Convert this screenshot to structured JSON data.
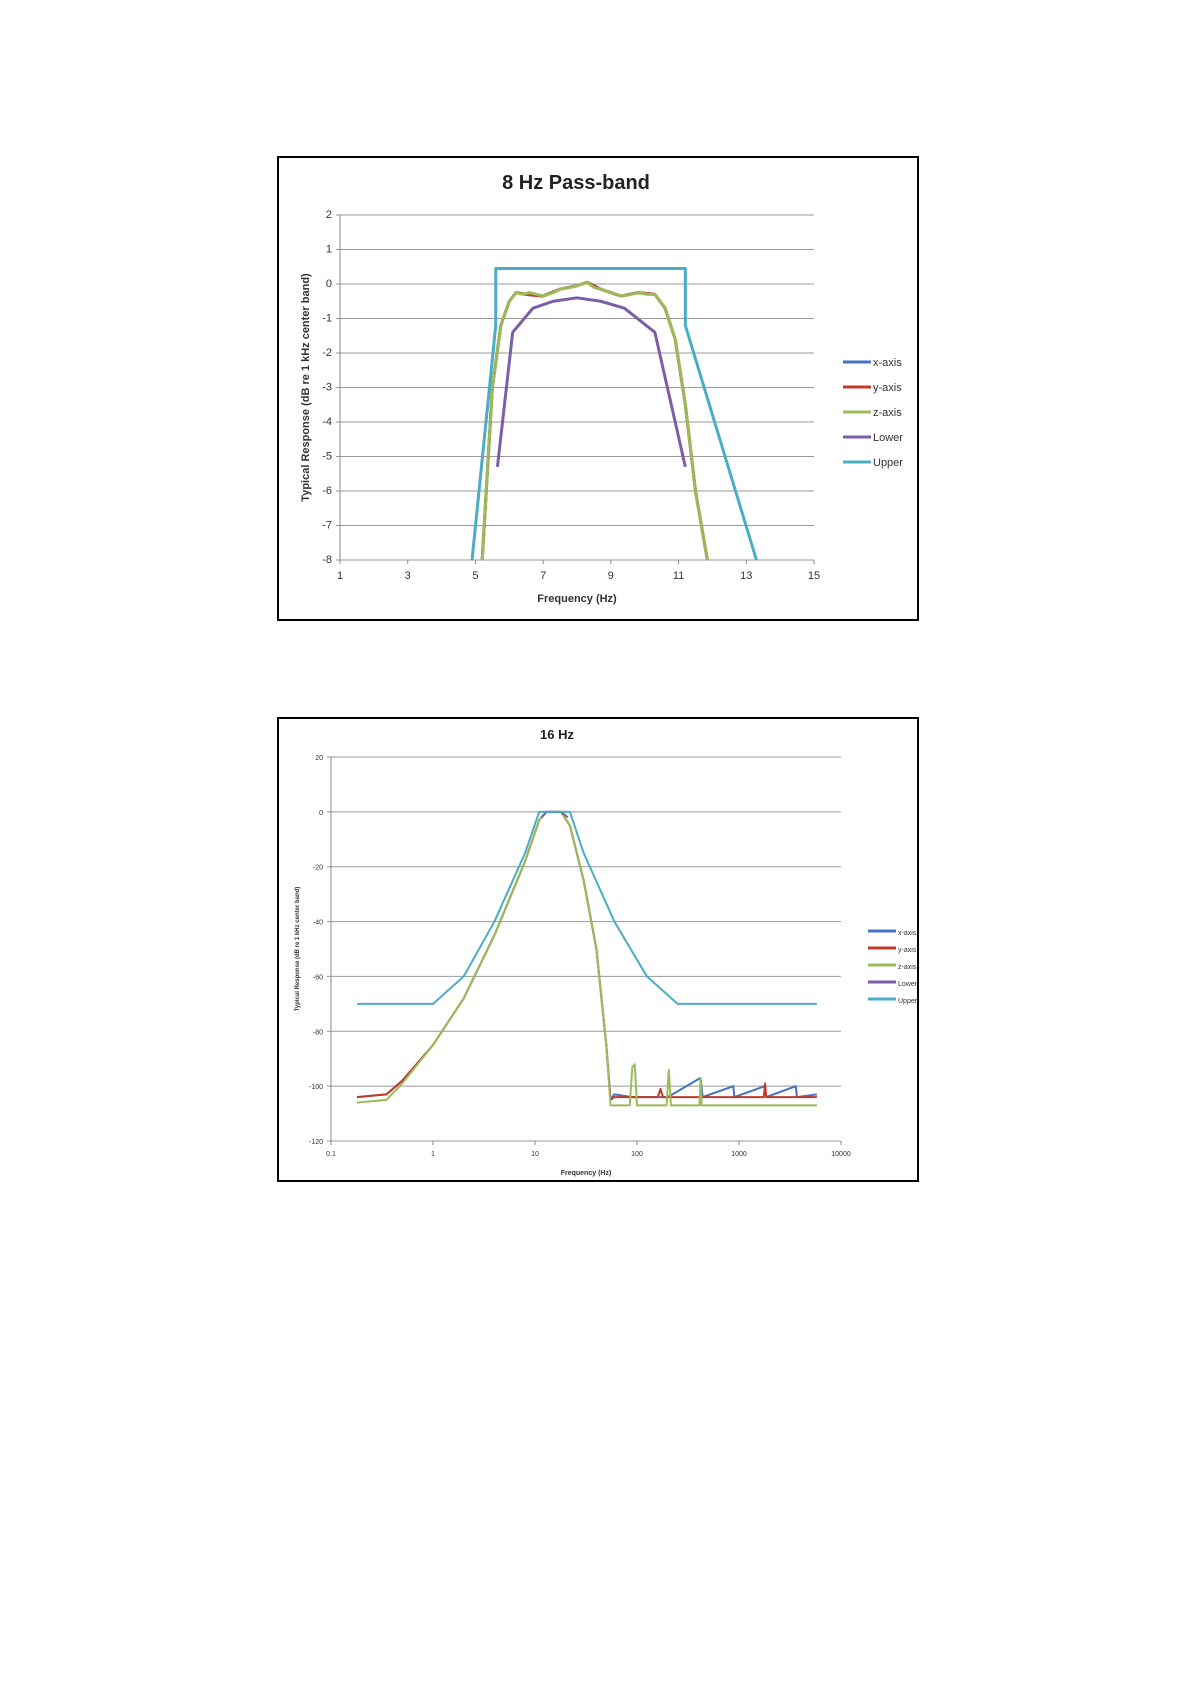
{
  "chart_data": [
    {
      "type": "line",
      "title": "8 Hz Pass-band",
      "xlabel": "Frequency (Hz)",
      "ylabel": "Typical  Response  (dB re 1 kHz center band)",
      "xscale": "linear",
      "xlim": [
        1,
        15
      ],
      "ylim": [
        -8,
        2
      ],
      "xticks": [
        1,
        3,
        5,
        7,
        9,
        11,
        13,
        15
      ],
      "yticks": [
        2,
        1,
        0,
        -1,
        -2,
        -3,
        -4,
        -5,
        -6,
        -7,
        -8
      ],
      "grid": true,
      "legend": "right",
      "series": [
        {
          "name": "x-axis",
          "color": "#4472c4",
          "points": [
            [
              5.2,
              -8
            ],
            [
              5.5,
              -3
            ],
            [
              5.75,
              -1.2
            ],
            [
              6.0,
              -0.5
            ],
            [
              6.2,
              -0.25
            ],
            [
              6.5,
              -0.3
            ],
            [
              7,
              -0.35
            ],
            [
              7.5,
              -0.15
            ],
            [
              8,
              -0.05
            ],
            [
              8.3,
              0.05
            ],
            [
              8.7,
              -0.15
            ],
            [
              9.3,
              -0.35
            ],
            [
              9.8,
              -0.25
            ],
            [
              10.3,
              -0.3
            ],
            [
              10.6,
              -0.7
            ],
            [
              10.9,
              -1.6
            ],
            [
              11.2,
              -3.5
            ],
            [
              11.5,
              -6
            ],
            [
              11.85,
              -8
            ]
          ]
        },
        {
          "name": "y-axis",
          "color": "#c0392b",
          "points": [
            [
              5.2,
              -8
            ],
            [
              5.5,
              -3
            ],
            [
              5.75,
              -1.2
            ],
            [
              6.0,
              -0.5
            ],
            [
              6.2,
              -0.25
            ],
            [
              6.5,
              -0.3
            ],
            [
              7,
              -0.35
            ],
            [
              7.5,
              -0.15
            ],
            [
              8,
              -0.05
            ],
            [
              8.3,
              0.05
            ],
            [
              8.7,
              -0.15
            ],
            [
              9.3,
              -0.35
            ],
            [
              9.8,
              -0.25
            ],
            [
              10.3,
              -0.3
            ],
            [
              10.6,
              -0.7
            ],
            [
              10.9,
              -1.6
            ],
            [
              11.2,
              -3.5
            ],
            [
              11.5,
              -6
            ],
            [
              11.85,
              -8
            ]
          ]
        },
        {
          "name": "z-axis",
          "color": "#9bbb59",
          "points": [
            [
              5.2,
              -8
            ],
            [
              5.5,
              -3
            ],
            [
              5.75,
              -1.2
            ],
            [
              6.0,
              -0.5
            ],
            [
              6.2,
              -0.25
            ],
            [
              6.4,
              -0.3
            ],
            [
              6.6,
              -0.25
            ],
            [
              7,
              -0.35
            ],
            [
              7.3,
              -0.25
            ],
            [
              7.5,
              -0.15
            ],
            [
              7.8,
              -0.1
            ],
            [
              8,
              -0.05
            ],
            [
              8.3,
              0.05
            ],
            [
              8.5,
              -0.1
            ],
            [
              8.7,
              -0.15
            ],
            [
              9,
              -0.25
            ],
            [
              9.3,
              -0.35
            ],
            [
              9.6,
              -0.3
            ],
            [
              9.8,
              -0.25
            ],
            [
              10.1,
              -0.3
            ],
            [
              10.3,
              -0.3
            ],
            [
              10.6,
              -0.7
            ],
            [
              10.9,
              -1.6
            ],
            [
              11.2,
              -3.5
            ],
            [
              11.5,
              -6
            ],
            [
              11.85,
              -8
            ]
          ]
        },
        {
          "name": "Lower",
          "color": "#7b5ea7",
          "points": [
            [
              5.65,
              -5.3
            ],
            [
              6.1,
              -1.4
            ],
            [
              6.7,
              -0.7
            ],
            [
              7.3,
              -0.5
            ],
            [
              8,
              -0.4
            ],
            [
              8.7,
              -0.5
            ],
            [
              9.4,
              -0.7
            ],
            [
              10.3,
              -1.4
            ],
            [
              11.2,
              -5.3
            ]
          ]
        },
        {
          "name": "Upper",
          "color": "#4bacc6",
          "points": [
            [
              4.9,
              -8
            ],
            [
              5.6,
              -1.2
            ],
            [
              5.6,
              0.45
            ],
            [
              11.2,
              0.45
            ],
            [
              11.2,
              -1.2
            ],
            [
              13.3,
              -8
            ]
          ]
        }
      ]
    },
    {
      "type": "line",
      "title": "16 Hz",
      "xlabel": "Frequency (Hz)",
      "ylabel": "Typical Response (dB re 1 kHz center band)",
      "xscale": "log",
      "xlim": [
        0.1,
        10000
      ],
      "ylim": [
        -120,
        20
      ],
      "xticks": [
        0.1,
        1,
        10,
        100,
        1000,
        10000
      ],
      "xtick_labels": [
        "0.1",
        "1",
        "10",
        "100",
        "1000",
        "10000"
      ],
      "yticks": [
        20,
        0,
        -20,
        -40,
        -60,
        -80,
        -100,
        -120
      ],
      "grid": true,
      "legend": "right",
      "series": [
        {
          "name": "x-axis",
          "color": "#4472c4",
          "points": [
            [
              0.18,
              -104
            ],
            [
              0.35,
              -103
            ],
            [
              0.5,
              -98
            ],
            [
              1,
              -85
            ],
            [
              2,
              -68
            ],
            [
              4,
              -45
            ],
            [
              8,
              -18
            ],
            [
              11,
              -3
            ],
            [
              13,
              0
            ],
            [
              18,
              0
            ],
            [
              22,
              -5
            ],
            [
              30,
              -25
            ],
            [
              40,
              -50
            ],
            [
              50,
              -85
            ],
            [
              55,
              -105
            ],
            [
              60,
              -103
            ],
            [
              90,
              -104
            ],
            [
              200,
              -104
            ],
            [
              420,
              -97
            ],
            [
              440,
              -104
            ],
            [
              880,
              -100
            ],
            [
              900,
              -104
            ],
            [
              1800,
              -100
            ],
            [
              1850,
              -104
            ],
            [
              3600,
              -100
            ],
            [
              3700,
              -104
            ],
            [
              5800,
              -103
            ]
          ]
        },
        {
          "name": "y-axis",
          "color": "#c0392b",
          "points": [
            [
              0.18,
              -104
            ],
            [
              0.35,
              -103
            ],
            [
              0.5,
              -98
            ],
            [
              1,
              -85
            ],
            [
              2,
              -68
            ],
            [
              4,
              -45
            ],
            [
              8,
              -18
            ],
            [
              11,
              -3
            ],
            [
              13,
              0
            ],
            [
              18,
              0
            ],
            [
              22,
              -5
            ],
            [
              30,
              -25
            ],
            [
              40,
              -50
            ],
            [
              50,
              -85
            ],
            [
              55,
              -105
            ],
            [
              60,
              -104
            ],
            [
              160,
              -104
            ],
            [
              170,
              -101
            ],
            [
              180,
              -104
            ],
            [
              1750,
              -104
            ],
            [
              1800,
              -99
            ],
            [
              1850,
              -104
            ],
            [
              5800,
              -104
            ]
          ]
        },
        {
          "name": "z-axis",
          "color": "#9bbb59",
          "points": [
            [
              0.18,
              -106
            ],
            [
              0.35,
              -105
            ],
            [
              0.5,
              -99
            ],
            [
              1,
              -85
            ],
            [
              2,
              -68
            ],
            [
              4,
              -45
            ],
            [
              8,
              -18
            ],
            [
              11,
              -3
            ],
            [
              13,
              0
            ],
            [
              18,
              0
            ],
            [
              22,
              -5
            ],
            [
              30,
              -25
            ],
            [
              40,
              -50
            ],
            [
              50,
              -85
            ],
            [
              55,
              -107
            ],
            [
              85,
              -107
            ],
            [
              90,
              -93
            ],
            [
              95,
              -92
            ],
            [
              100,
              -107
            ],
            [
              195,
              -107
            ],
            [
              205,
              -94
            ],
            [
              215,
              -107
            ],
            [
              410,
              -107
            ],
            [
              420,
              -97
            ],
            [
              430,
              -107
            ],
            [
              5800,
              -107
            ]
          ]
        },
        {
          "name": "Lower",
          "color": "#7b5ea7",
          "points": [
            [
              11.5,
              -2
            ],
            [
              13,
              0
            ],
            [
              18,
              0
            ],
            [
              21,
              -2
            ]
          ]
        },
        {
          "name": "Upper",
          "color": "#4bacc6",
          "points": [
            [
              0.18,
              -70
            ],
            [
              1,
              -70
            ],
            [
              2,
              -60
            ],
            [
              4,
              -40
            ],
            [
              8,
              -15
            ],
            [
              11,
              0
            ],
            [
              22,
              0
            ],
            [
              30,
              -15
            ],
            [
              60,
              -40
            ],
            [
              125,
              -60
            ],
            [
              250,
              -70
            ],
            [
              5800,
              -70
            ]
          ]
        }
      ]
    }
  ]
}
